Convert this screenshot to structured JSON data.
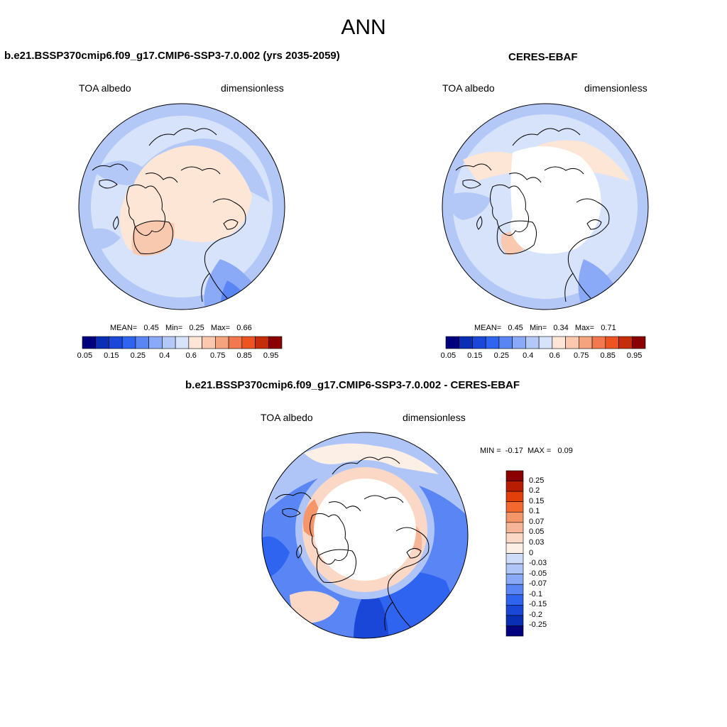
{
  "title": "ANN",
  "colors": {
    "abs_palette": [
      "#00007f",
      "#0a2fb5",
      "#1a47d8",
      "#2e64f0",
      "#5a86f5",
      "#8aa9f7",
      "#b4c8f8",
      "#d7e3fb",
      "#fde6d6",
      "#f8c9ae",
      "#f5a37d",
      "#f2794f",
      "#ee5422",
      "#c52e0a",
      "#8b0000"
    ],
    "diff_palette": [
      "#8b0000",
      "#b81d02",
      "#e23f0a",
      "#f3682e",
      "#f5956a",
      "#f7b598",
      "#fbd7c5",
      "#fcefe6",
      "#cfdcf9",
      "#b0c5f7",
      "#8aa9f7",
      "#5a86f5",
      "#2e64f0",
      "#1a47d8",
      "#0a2fb5",
      "#00007f"
    ]
  },
  "panels": {
    "left": {
      "title": "b.e21.BSSP370cmip6.f09_g17.CMIP6-SSP3-7.0.002 (yrs 2035-2059)",
      "variable": "TOA albedo",
      "units": "dimensionless",
      "stats": {
        "mean_label": "MEAN=",
        "mean": "0.45",
        "min_label": "Min=",
        "min": "0.25",
        "max_label": "Max=",
        "max": "0.66"
      },
      "colorbar_ticks": [
        "0.05",
        "0.15",
        "0.25",
        "0.4",
        "0.6",
        "0.75",
        "0.85",
        "0.95"
      ]
    },
    "right": {
      "title": "CERES-EBAF",
      "variable": "TOA albedo",
      "units": "dimensionless",
      "stats": {
        "mean_label": "MEAN=",
        "mean": "0.45",
        "min_label": "Min=",
        "min": "0.34",
        "max_label": "Max=",
        "max": "0.71"
      },
      "colorbar_ticks": [
        "0.05",
        "0.15",
        "0.25",
        "0.4",
        "0.6",
        "0.75",
        "0.85",
        "0.95"
      ]
    },
    "diff": {
      "title": "b.e21.BSSP370cmip6.f09_g17.CMIP6-SSP3-7.0.002 - CERES-EBAF",
      "variable": "TOA albedo",
      "units": "dimensionless",
      "stats": {
        "min_label": "MIN =",
        "min": "-0.17",
        "max_label": "MAX =",
        "max": "0.09"
      },
      "colorbar_ticks": [
        "0.25",
        "0.2",
        "0.15",
        "0.1",
        "0.07",
        "0.05",
        "0.03",
        "0",
        "-0.03",
        "-0.05",
        "-0.07",
        "-0.1",
        "-0.15",
        "-0.2",
        "-0.25"
      ]
    }
  }
}
